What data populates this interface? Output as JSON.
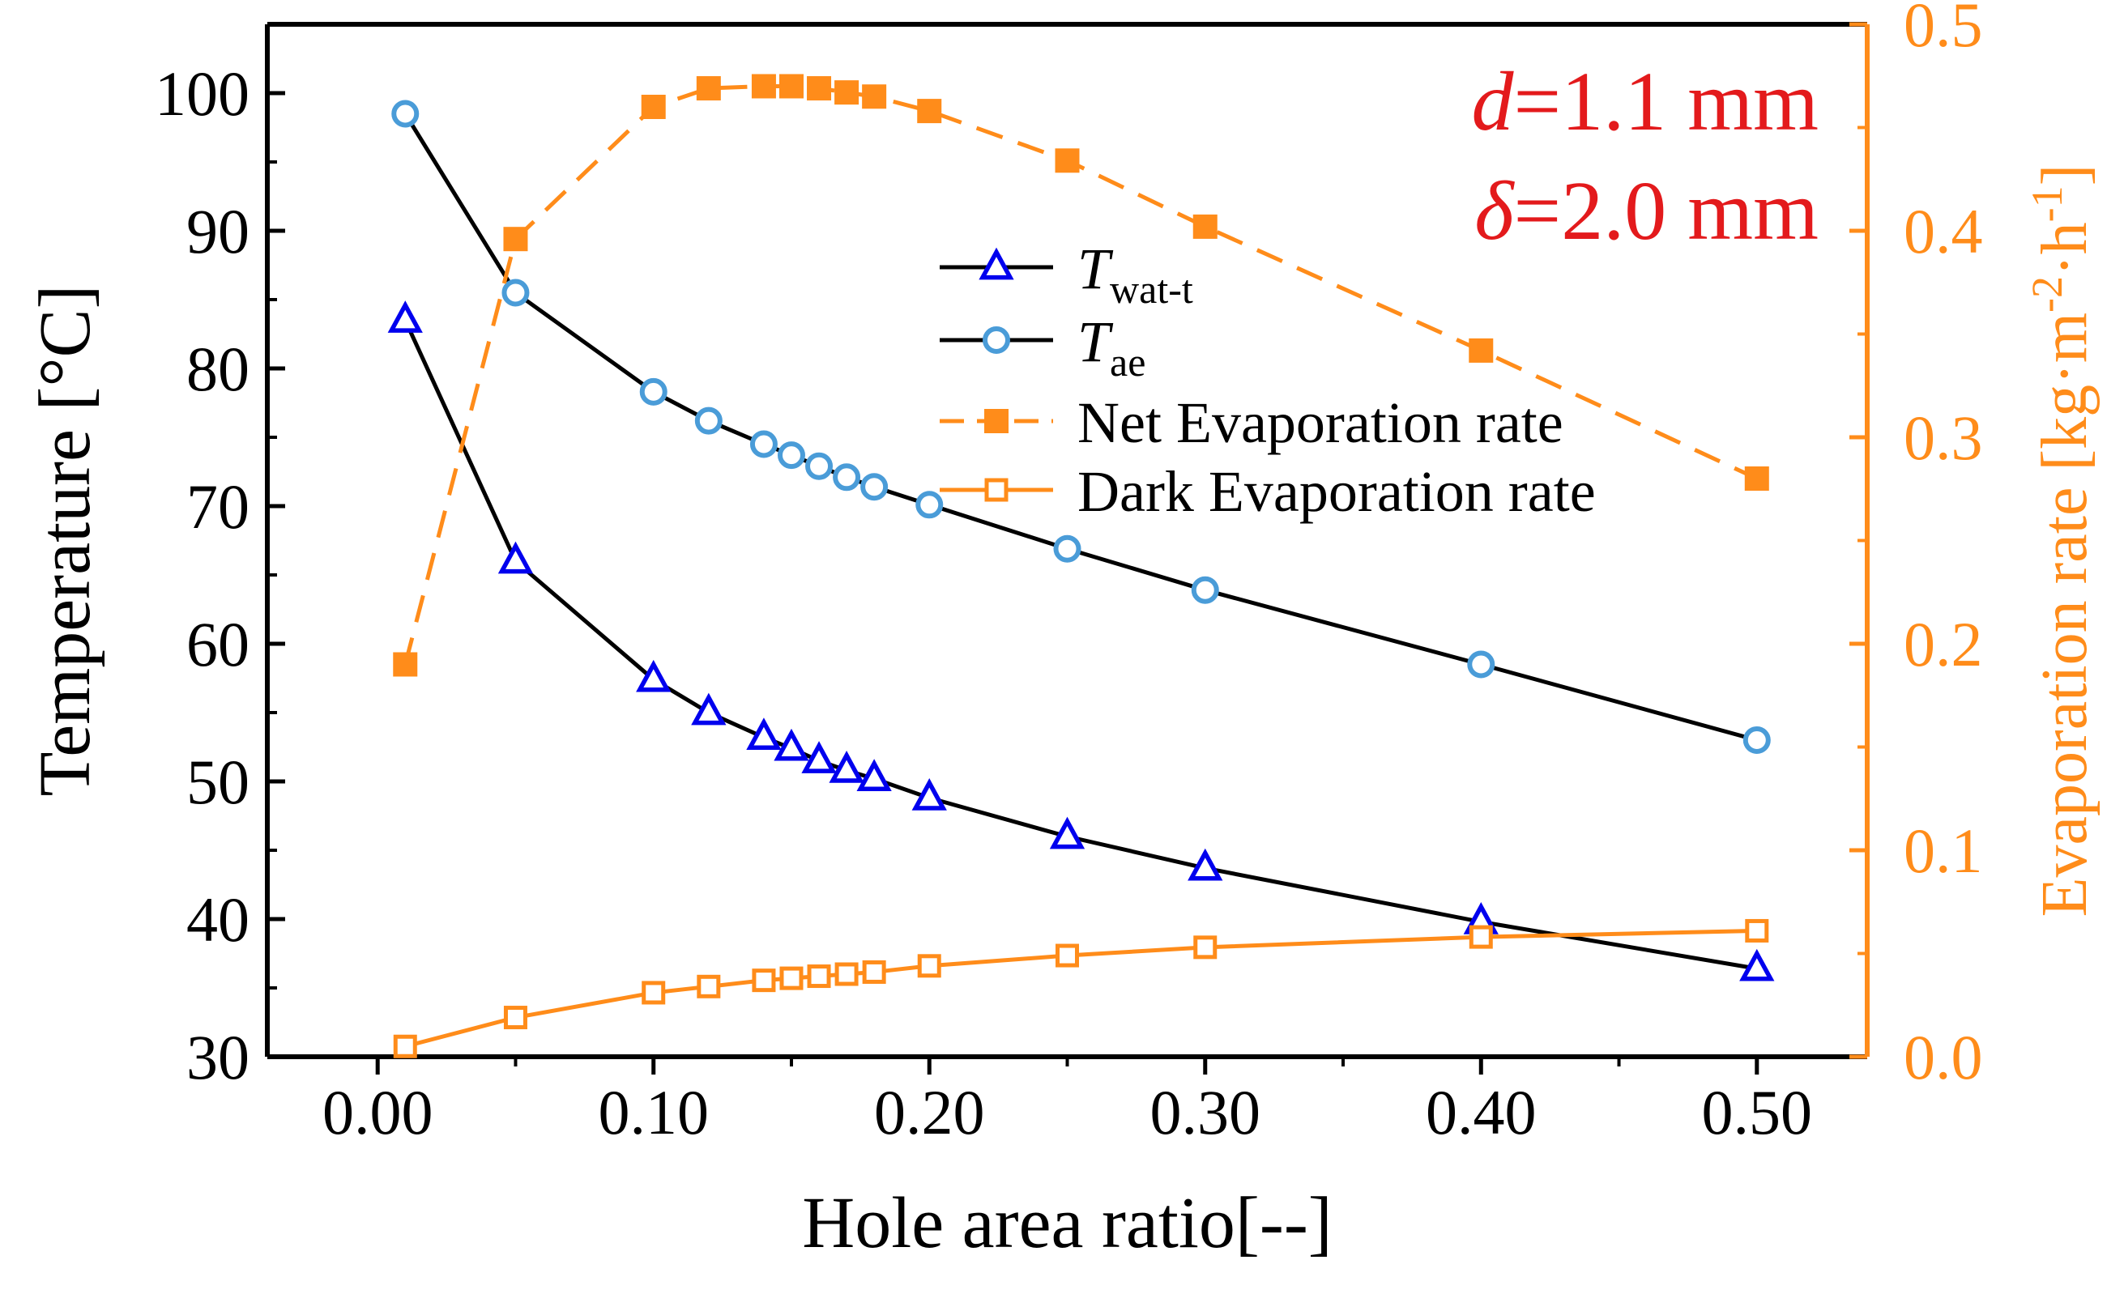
{
  "colors": {
    "left_axis": "#000000",
    "right_axis": "#ff8c1a",
    "twat_series": "#0000ee",
    "tae_series": "#000000",
    "tae_marker": "#4a9cd8",
    "annotation": "#e31a1c"
  },
  "chart_data": {
    "type": "line",
    "title": "",
    "xlabel": "Hole area ratio[--]",
    "ylabel_left": "Temperature [°C]",
    "ylabel_right": "Evaporation rate [kg·m-2·h-1]",
    "ylabel_right_parts": {
      "base": "Evaporation rate [kg·m",
      "exp1": "-2",
      "mid": "·h",
      "exp2": "-1",
      "end": "]"
    },
    "xlim": [
      -0.04,
      0.54
    ],
    "ylim_left": [
      30,
      105
    ],
    "ylim_right": [
      0.0,
      0.5
    ],
    "xticks": [
      0.0,
      0.1,
      0.2,
      0.3,
      0.4,
      0.5
    ],
    "xtick_labels": [
      "0.00",
      "0.10",
      "0.20",
      "0.30",
      "0.40",
      "0.50"
    ],
    "yticks_left": [
      30,
      40,
      50,
      60,
      70,
      80,
      90,
      100
    ],
    "ytick_labels_left": [
      "30",
      "40",
      "50",
      "60",
      "70",
      "80",
      "90",
      "100"
    ],
    "yticks_right": [
      0.0,
      0.1,
      0.2,
      0.3,
      0.4,
      0.5
    ],
    "ytick_labels_right": [
      "0.0",
      "0.1",
      "0.2",
      "0.3",
      "0.4",
      "0.5"
    ],
    "x": [
      0.01,
      0.05,
      0.1,
      0.12,
      0.14,
      0.15,
      0.16,
      0.17,
      0.18,
      0.2,
      0.25,
      0.3,
      0.4,
      0.5
    ],
    "series": [
      {
        "key": "twat",
        "name": "T",
        "name_sub": "wat-t",
        "axis": "left",
        "marker": "triangle-open",
        "line": "solid",
        "values": [
          83.5,
          66.0,
          57.4,
          55.0,
          53.2,
          52.4,
          51.5,
          50.8,
          50.2,
          48.8,
          46.0,
          43.7,
          39.8,
          36.4
        ]
      },
      {
        "key": "tae",
        "name": "T",
        "name_sub": "ae",
        "axis": "left",
        "marker": "circle-open",
        "line": "solid",
        "values": [
          98.5,
          85.5,
          78.3,
          76.2,
          74.5,
          73.7,
          72.9,
          72.1,
          71.4,
          70.1,
          66.9,
          63.9,
          58.5,
          53.0
        ]
      },
      {
        "key": "net",
        "name": "Net Evaporation rate",
        "name_sub": "",
        "axis": "right",
        "marker": "square-filled",
        "line": "dashed",
        "values": [
          0.19,
          0.396,
          0.46,
          0.469,
          0.47,
          0.47,
          0.469,
          0.467,
          0.465,
          0.458,
          0.434,
          0.402,
          0.342,
          0.28
        ]
      },
      {
        "key": "dark",
        "name": "Dark  Evaporation rate",
        "name_sub": "",
        "axis": "right",
        "marker": "square-open",
        "line": "solid",
        "values": [
          0.005,
          0.019,
          0.031,
          0.034,
          0.037,
          0.038,
          0.039,
          0.04,
          0.041,
          0.044,
          0.049,
          0.053,
          0.058,
          0.061
        ]
      }
    ],
    "annotations": [
      {
        "symbol": "d",
        "text": "=1.1 mm"
      },
      {
        "symbol": "δ",
        "text": "=2.0 mm"
      }
    ],
    "legend_position": "upper-center"
  }
}
